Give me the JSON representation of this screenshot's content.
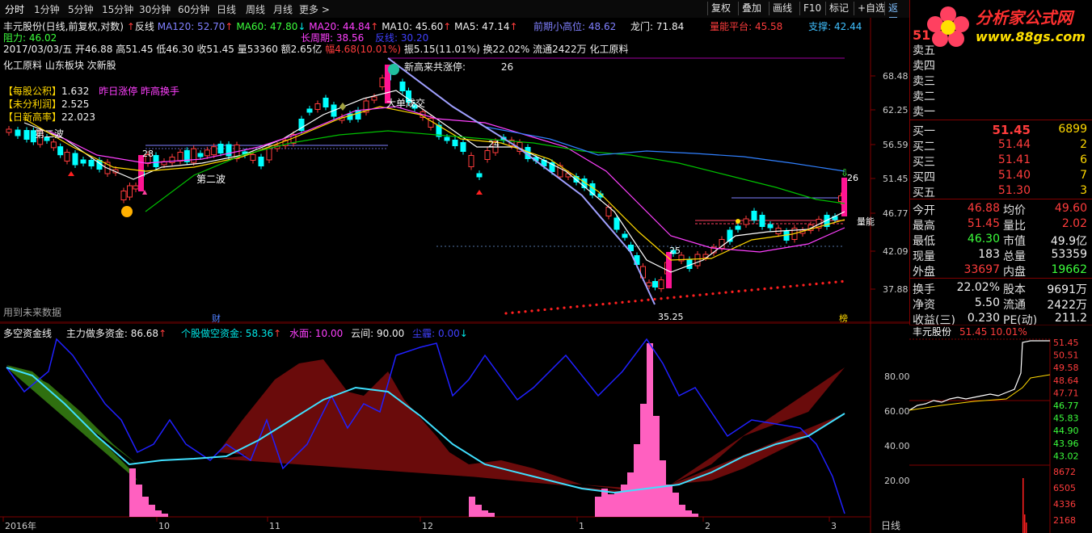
{
  "topbar": {
    "tabs": [
      "分时",
      "1分钟",
      "5分钟",
      "15分钟",
      "30分钟",
      "60分钟",
      "日线",
      "周线",
      "月线",
      "更多 >"
    ],
    "buttons": [
      "复权",
      "叠加",
      "画线",
      "F10",
      "标记",
      "+自选",
      "返回"
    ]
  },
  "logo": {
    "title": "分析家公式网",
    "url": "www.88gs.com"
  },
  "header": {
    "stock_title": "丰元股份(日线,前复权,对数)",
    "anti": "反线",
    "ma120": "MA120: 52.70",
    "ma60": "MA60: 47.80",
    "ma20": "MA20: 44.84",
    "ma10": "MA10: 45.60",
    "ma5": "MA5: 47.14",
    "prev_high": "前期小高位: 48.62",
    "dragon": "龙门: 71.84",
    "vol_platform": "量能平台: 45.58",
    "support": "支撑: 42.44",
    "resist": "阻力: 46.02",
    "long_period": "长周期: 38.56",
    "anti_line": "反线: 30.20",
    "day_info": "2017/03/03/五  开46.88 高51.45 低46.30 收51.45 量53360 额2.65亿",
    "amp": "幅4.68(10.01%)",
    "swing": "振5.15(11.01%) 换22.02% 流通2422万 化工原料",
    "sector": "化工原料 山东板块 次新股",
    "eps_label": "【每股公积】",
    "eps": "1.632",
    "eps_note": "昨日涨停 昨高换手",
    "profit_label": "【未分利润】",
    "profit": "2.525",
    "today_label": "【日新高率】",
    "today": "22.023",
    "new_limit": "新高来共涨停:",
    "new_limit_n": "26",
    "future_data": "用到未来数据"
  },
  "main_labels": {
    "second_wave1": "第二波",
    "second_wave2": "第二波",
    "big_deal": "大单成交",
    "n28": "28",
    "n24": "24",
    "n25": "25",
    "low_label": "35.25",
    "n26": "26",
    "qty": "量能",
    "fin": "财",
    "bang": "榜"
  },
  "price_axis": [
    "68.48",
    "62.25",
    "56.59",
    "51.45",
    "46.77",
    "42.09",
    "37.88"
  ],
  "ind_header": {
    "name": "多空资金线",
    "main_fund": "主力做多资金: 86.68",
    "stock_fund": "个股做空资金: 58.36",
    "water": "水面: 10.00",
    "cloud": "云间: 90.00",
    "sky": "尘霾: 0.00"
  },
  "ind_axis": [
    "80.00",
    "60.00",
    "40.00",
    "20.00"
  ],
  "date_axis": [
    "2016年",
    "10",
    "11",
    "12",
    "1",
    "2",
    "3"
  ],
  "date_axis_right": "日线",
  "quote": {
    "code_price": "51",
    "sells": [
      {
        "label": "卖五",
        "price": "",
        "vol": ""
      },
      {
        "label": "卖四",
        "price": "",
        "vol": ""
      },
      {
        "label": "卖三",
        "price": "",
        "vol": ""
      },
      {
        "label": "卖二",
        "price": "",
        "vol": ""
      },
      {
        "label": "卖一",
        "price": "",
        "vol": ""
      }
    ],
    "buys": [
      {
        "label": "买一",
        "price": "51.45",
        "vol": "6899"
      },
      {
        "label": "买二",
        "price": "51.44",
        "vol": "2"
      },
      {
        "label": "买三",
        "price": "51.41",
        "vol": "6"
      },
      {
        "label": "买四",
        "price": "51.40",
        "vol": "7"
      },
      {
        "label": "买五",
        "price": "51.30",
        "vol": "3"
      }
    ],
    "stats": [
      {
        "l1": "今开",
        "v1": "46.88",
        "c1": "red",
        "l2": "均价",
        "v2": "49.60",
        "c2": "red"
      },
      {
        "l1": "最高",
        "v1": "51.45",
        "c1": "red",
        "l2": "量比",
        "v2": "2.02",
        "c2": "red"
      },
      {
        "l1": "最低",
        "v1": "46.30",
        "c1": "green",
        "l2": "市值",
        "v2": "49.9亿",
        "c2": "white"
      },
      {
        "l1": "现量",
        "v1": "183",
        "c1": "white",
        "l2": "总量",
        "v2": "53359",
        "c2": "white"
      },
      {
        "l1": "外盘",
        "v1": "33697",
        "c1": "red",
        "l2": "内盘",
        "v2": "19662",
        "c2": "green"
      }
    ],
    "stats2": [
      {
        "l1": "换手",
        "v1": "22.02%",
        "l2": "股本",
        "v2": "9691万"
      },
      {
        "l1": "净资",
        "v1": "5.50",
        "l2": "流通",
        "v2": "2422万"
      },
      {
        "l1": "收益(三)",
        "v1": "0.230",
        "l2": "PE(动)",
        "v2": "211.2"
      }
    ]
  },
  "mini": {
    "title": "丰元股份",
    "price": "51.45",
    "pct": "10.01%",
    "axis": [
      "51.45",
      "50.51",
      "49.58",
      "48.64",
      "47.71",
      "46.77",
      "45.83",
      "44.90",
      "43.96",
      "43.02"
    ],
    "vol_axis": [
      "8672",
      "6505",
      "4336",
      "2168"
    ]
  },
  "colors": {
    "up": "#ff3c3c",
    "down": "#00ffff",
    "ma5": "#ffffff",
    "ma10": "#ffd800",
    "ma20": "#ff40ff",
    "ma60": "#00ff00",
    "ma120": "#8080ff",
    "anti": "#a0a0ff"
  }
}
